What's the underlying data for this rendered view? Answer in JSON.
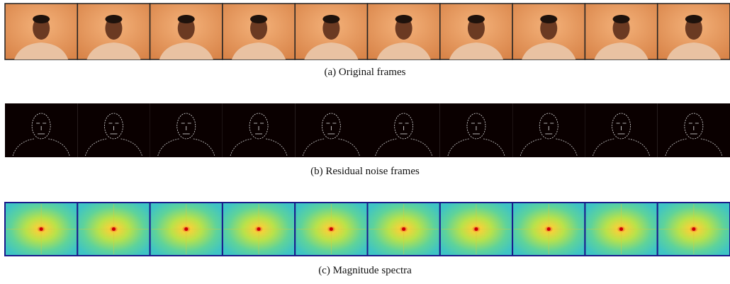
{
  "figure": {
    "panels": [
      {
        "caption": "(a) Original frames"
      },
      {
        "caption": "(b) Residual noise frames"
      },
      {
        "caption": "(c) Magnitude spectra"
      }
    ]
  }
}
